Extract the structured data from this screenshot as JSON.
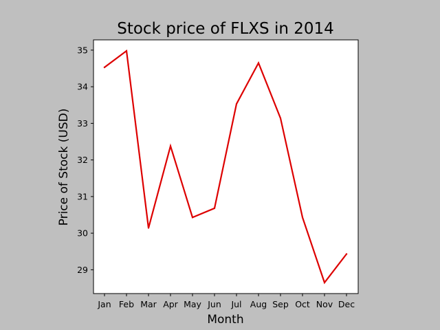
{
  "chart_data": {
    "type": "line",
    "title": "Stock price of FLXS in 2014",
    "xlabel": "Month",
    "ylabel": "Price of Stock (USD)",
    "categories": [
      "Jan",
      "Feb",
      "Mar",
      "Apr",
      "May",
      "Jun",
      "Jul",
      "Aug",
      "Sep",
      "Oct",
      "Nov",
      "Dec"
    ],
    "series": [
      {
        "values": [
          34.53,
          34.98,
          30.14,
          32.38,
          30.43,
          30.68,
          33.53,
          34.65,
          33.14,
          30.43,
          28.65,
          29.43
        ],
        "color": "#dd0000"
      }
    ],
    "yticks": [
      29,
      30,
      31,
      32,
      33,
      34,
      35
    ],
    "ylim": [
      28.35,
      35.28
    ],
    "grid": false,
    "legend": "none",
    "background": "#bfbfbf",
    "plot_background": "#ffffff"
  }
}
